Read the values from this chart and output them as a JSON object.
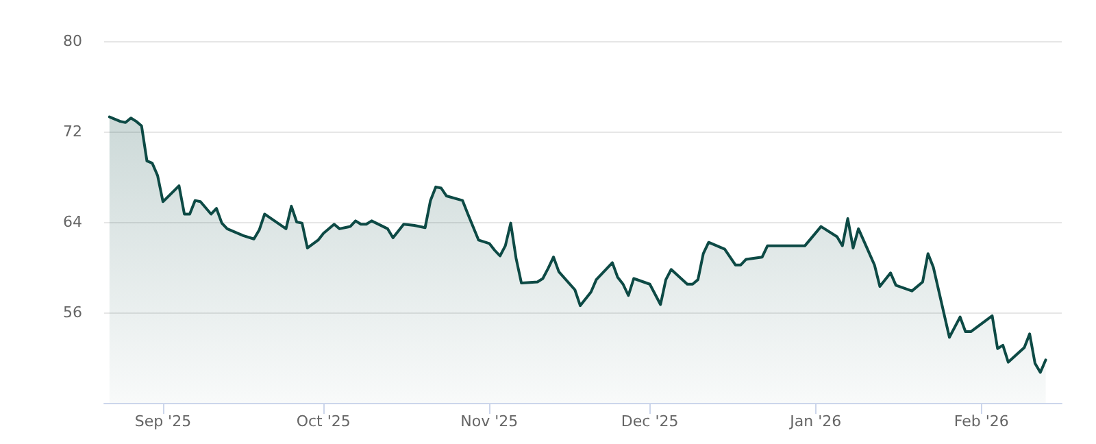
{
  "chart_data": {
    "type": "area",
    "x": [
      "2025-08-22",
      "2025-08-24",
      "2025-08-25",
      "2025-08-26",
      "2025-08-27",
      "2025-08-28",
      "2025-08-29",
      "2025-08-30",
      "2025-08-31",
      "2025-09-01",
      "2025-09-04",
      "2025-09-05",
      "2025-09-06",
      "2025-09-07",
      "2025-09-08",
      "2025-09-10",
      "2025-09-11",
      "2025-09-12",
      "2025-09-13",
      "2025-09-16",
      "2025-09-18",
      "2025-09-19",
      "2025-09-20",
      "2025-09-24",
      "2025-09-25",
      "2025-09-26",
      "2025-09-27",
      "2025-09-28",
      "2025-09-30",
      "2025-10-01",
      "2025-10-03",
      "2025-10-04",
      "2025-10-06",
      "2025-10-07",
      "2025-10-08",
      "2025-10-09",
      "2025-10-10",
      "2025-10-13",
      "2025-10-14",
      "2025-10-16",
      "2025-10-18",
      "2025-10-20",
      "2025-10-21",
      "2025-10-22",
      "2025-10-23",
      "2025-10-24",
      "2025-10-27",
      "2025-10-28",
      "2025-10-30",
      "2025-11-01",
      "2025-11-02",
      "2025-11-03",
      "2025-11-04",
      "2025-11-05",
      "2025-11-06",
      "2025-11-07",
      "2025-11-10",
      "2025-11-11",
      "2025-11-12",
      "2025-11-13",
      "2025-11-14",
      "2025-11-17",
      "2025-11-18",
      "2025-11-20",
      "2025-11-21",
      "2025-11-24",
      "2025-11-25",
      "2025-11-26",
      "2025-11-27",
      "2025-11-28",
      "2025-12-01",
      "2025-12-03",
      "2025-12-04",
      "2025-12-05",
      "2025-12-08",
      "2025-12-09",
      "2025-12-10",
      "2025-12-11",
      "2025-12-12",
      "2025-12-15",
      "2025-12-17",
      "2025-12-18",
      "2025-12-19",
      "2025-12-22",
      "2025-12-23",
      "2025-12-30",
      "2026-01-02",
      "2026-01-05",
      "2026-01-06",
      "2026-01-07",
      "2026-01-08",
      "2026-01-09",
      "2026-01-12",
      "2026-01-13",
      "2026-01-15",
      "2026-01-16",
      "2026-01-19",
      "2026-01-21",
      "2026-01-22",
      "2026-01-23",
      "2026-01-26",
      "2026-01-28",
      "2026-01-29",
      "2026-01-30",
      "2026-02-03",
      "2026-02-04",
      "2026-02-05",
      "2026-02-06",
      "2026-02-09",
      "2026-02-10",
      "2026-02-11",
      "2026-02-12",
      "2026-02-13"
    ],
    "series": [
      {
        "color": "#0d4a45",
        "values": [
          73.3,
          72.9,
          72.8,
          73.2,
          72.9,
          72.5,
          69.4,
          69.2,
          68.1,
          65.8,
          67.2,
          64.7,
          64.7,
          65.9,
          65.8,
          64.7,
          65.2,
          63.9,
          63.4,
          62.8,
          62.5,
          63.3,
          64.7,
          63.4,
          65.4,
          64.0,
          63.9,
          61.7,
          62.4,
          63.0,
          63.8,
          63.4,
          63.6,
          64.1,
          63.8,
          63.8,
          64.1,
          63.4,
          62.6,
          63.8,
          63.7,
          63.5,
          65.9,
          67.1,
          67.0,
          66.3,
          65.9,
          64.7,
          62.4,
          62.1,
          61.5,
          61.0,
          61.9,
          63.9,
          60.8,
          58.6,
          58.7,
          59.0,
          59.9,
          60.9,
          59.6,
          58.0,
          56.6,
          57.8,
          58.9,
          60.4,
          59.1,
          58.5,
          57.5,
          59.0,
          58.5,
          56.7,
          58.9,
          59.8,
          58.5,
          58.5,
          58.9,
          61.2,
          62.2,
          61.6,
          60.2,
          60.2,
          60.7,
          60.9,
          61.9,
          61.9,
          63.6,
          62.7,
          61.9,
          64.3,
          61.7,
          63.4,
          60.2,
          58.3,
          59.5,
          58.4,
          57.9,
          58.7,
          61.2,
          60.0,
          53.8,
          55.6,
          54.3,
          54.3,
          55.7,
          52.8,
          53.1,
          51.6,
          52.9,
          54.1,
          51.5,
          50.7,
          51.8
        ]
      }
    ],
    "xlim": [
      "2025-08-21",
      "2026-02-16"
    ],
    "xticks": [
      {
        "value": "2025-09-01",
        "label": "Sep '25"
      },
      {
        "value": "2025-10-01",
        "label": "Oct '25"
      },
      {
        "value": "2025-11-01",
        "label": "Nov '25"
      },
      {
        "value": "2025-12-01",
        "label": "Dec '25"
      },
      {
        "value": "2026-01-01",
        "label": "Jan '26"
      },
      {
        "value": "2026-02-01",
        "label": "Feb '26"
      }
    ],
    "ylim": [
      48,
      80
    ],
    "yticks": [
      56,
      64,
      72,
      80
    ],
    "grid": "y",
    "marker": "none",
    "line_style": "solid"
  }
}
